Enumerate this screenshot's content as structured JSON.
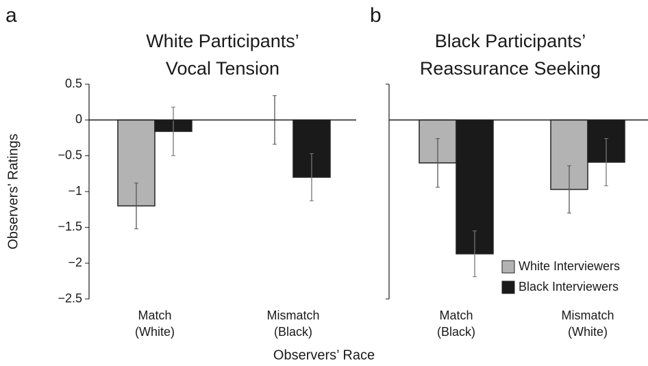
{
  "chart_data": [
    {
      "type": "bar",
      "panel": "a",
      "title": [
        "White Participants’",
        "Vocal Tension"
      ],
      "ylabel": "Observers’ Ratings",
      "xlabel": "Observers’ Race",
      "categories": [
        [
          "Match",
          "(White)"
        ],
        [
          "Mismatch",
          "(Black)"
        ]
      ],
      "series": [
        {
          "color": "#b3b3b3",
          "values": [
            -1.2,
            0
          ],
          "errors": [
            0.32,
            0.34
          ]
        },
        {
          "color": "#1a1a1a",
          "values": [
            -0.16,
            -0.8
          ],
          "errors": [
            0.34,
            0.33
          ]
        }
      ],
      "ylim": [
        -2.5,
        0.5
      ],
      "yticks": [
        0.5,
        0,
        {
          "value": -0.5,
          "label": "−0.5"
        },
        {
          "value": -1,
          "label": "−1"
        },
        {
          "value": -1.5,
          "label": "−1.5"
        },
        {
          "value": -2,
          "label": "−2"
        },
        {
          "value": -2.5,
          "label": "−2.5"
        }
      ]
    },
    {
      "type": "bar",
      "panel": "b",
      "title": [
        "Black Participants’",
        "Reassurance Seeking"
      ],
      "categories": [
        [
          "Match",
          "(Black)"
        ],
        [
          "Mismatch",
          "(White)"
        ]
      ],
      "series": [
        {
          "name": "White Interviewers",
          "color": "#b3b3b3",
          "values": [
            -0.6,
            -0.97
          ],
          "errors": [
            0.34,
            0.33
          ]
        },
        {
          "name": "Black Interviewers",
          "color": "#1a1a1a",
          "values": [
            -1.87,
            -0.59
          ],
          "errors": [
            0.32,
            0.33
          ]
        }
      ],
      "ylim": [
        -2.5,
        0.5
      ],
      "legend": "lower right"
    }
  ]
}
